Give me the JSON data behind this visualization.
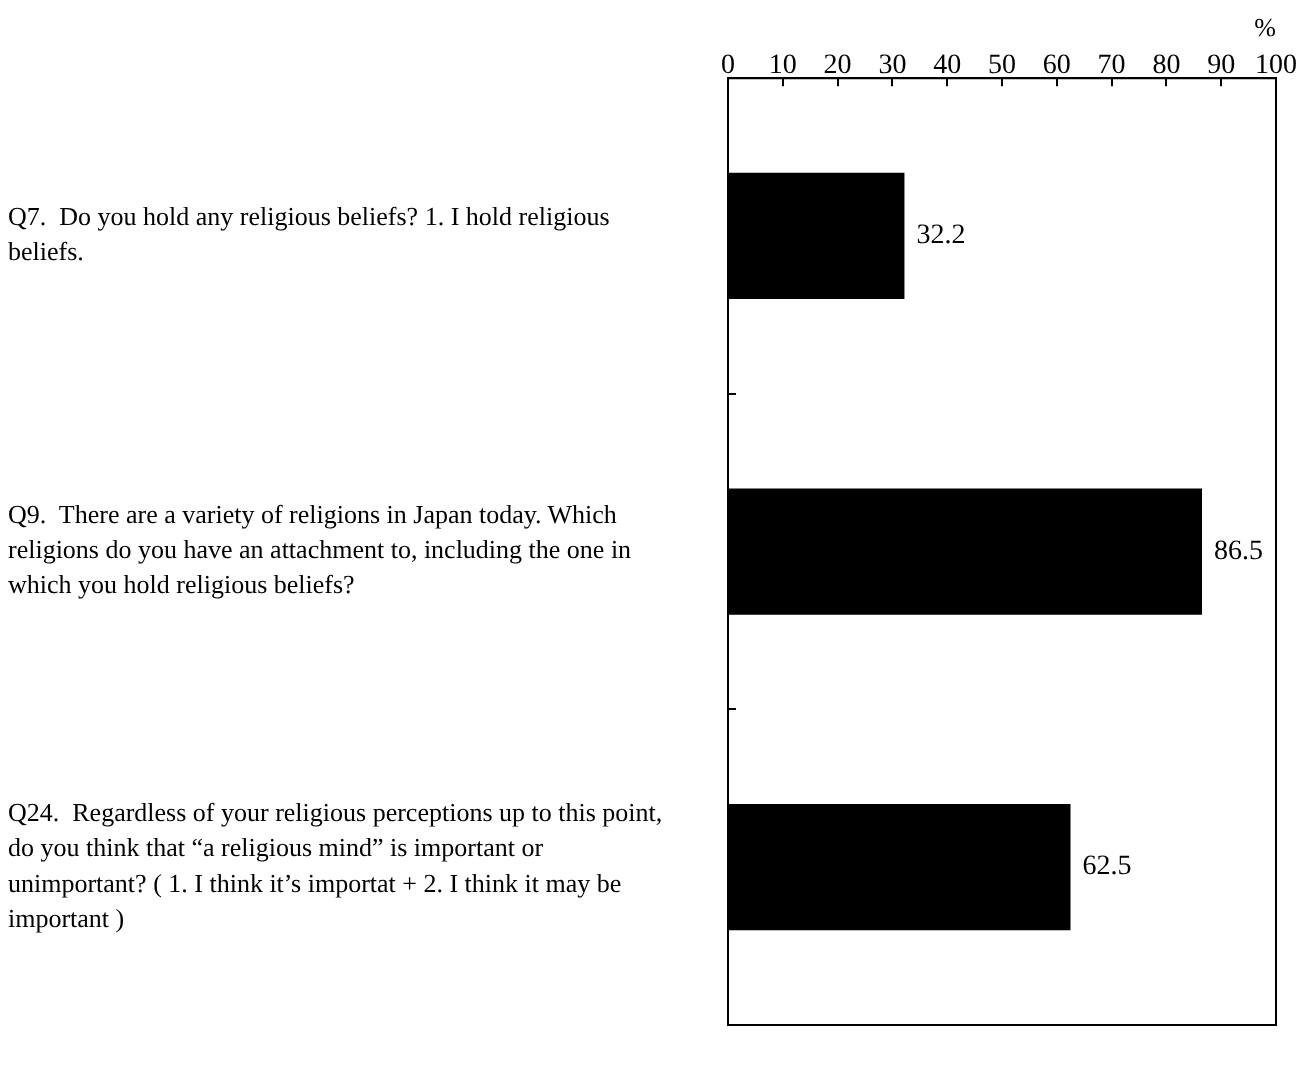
{
  "chart_data": {
    "type": "bar",
    "orientation": "horizontal",
    "xlabel": "%",
    "categories": [
      "Q7.  Do you hold any religious beliefs? 1. I hold religious beliefs.",
      "Q9.  There are a variety of religions in Japan today. Which religions do you have an attachment to, including the one in which you hold religious beliefs?",
      "Q24.  Regardless of your religious perceptions up to this point, do you think that “a religious mind” is important or unimportant? ( 1. I think it’s importat + 2. I think it may be important )"
    ],
    "values": [
      32.2,
      86.5,
      62.5
    ],
    "color": "#000000",
    "xlim": [
      0,
      100
    ],
    "xticks": [
      0,
      10,
      20,
      30,
      40,
      50,
      60,
      70,
      80,
      90,
      100
    ],
    "data_labels": true,
    "grid": false,
    "legend": false
  }
}
